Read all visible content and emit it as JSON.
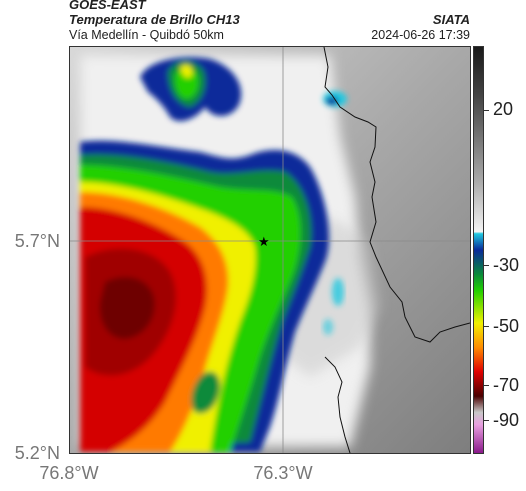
{
  "header": {
    "title_main": "GOES-EAST",
    "title_sub": "Temperatura de Brillo CH13",
    "route": "Vía Medellín - Quibdó 50km",
    "brand": "SIATA",
    "timestamp": "2024-06-26 17:39"
  },
  "axes": {
    "y_labels": [
      "5.7°N",
      "5.2°N"
    ],
    "x_labels": [
      "76.8°W",
      "76.3°W"
    ]
  },
  "colorbar": {
    "labels": [
      "20",
      "-30",
      "-50",
      "-70",
      "-90"
    ],
    "stops": [
      {
        "v": 0.0,
        "c": "#1a1a1a"
      },
      {
        "v": 0.12,
        "c": "#444444"
      },
      {
        "v": 0.33,
        "c": "#a9a9a9"
      },
      {
        "v": 0.455,
        "c": "#f4f4f4"
      },
      {
        "v": 0.46,
        "c": "#20c8e0"
      },
      {
        "v": 0.5,
        "c": "#0a2a9a"
      },
      {
        "v": 0.56,
        "c": "#0a8a3a"
      },
      {
        "v": 0.6,
        "c": "#22d000"
      },
      {
        "v": 0.68,
        "c": "#f0f000"
      },
      {
        "v": 0.74,
        "c": "#ff8c00"
      },
      {
        "v": 0.8,
        "c": "#e00000"
      },
      {
        "v": 0.86,
        "c": "#4a0000"
      },
      {
        "v": 0.9,
        "c": "#c8c8c8"
      },
      {
        "v": 0.93,
        "c": "#e8a0e0"
      },
      {
        "v": 1.0,
        "c": "#8a1a8a"
      }
    ]
  },
  "map": {
    "marker_icon": "star-icon",
    "colors": {
      "cold_red_dark": "#6e0000",
      "cold_red": "#d40000",
      "orange": "#ff7a00",
      "yellow": "#f0f000",
      "green": "#22d000",
      "dark_green": "#0a8a3a",
      "blue": "#0a2a9a",
      "cyan": "#20c8e0",
      "cloud_white": "#f2f2f2",
      "land_gray": "#9a9a9a"
    }
  }
}
